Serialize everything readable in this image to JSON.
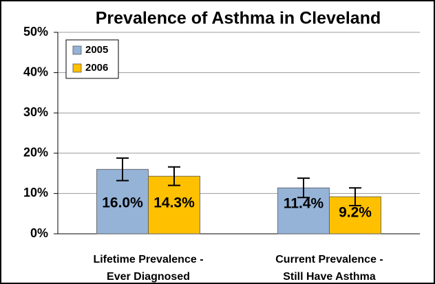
{
  "chart_data": {
    "type": "bar",
    "title": "Prevalence of Asthma in Cleveland",
    "categories": [
      [
        "Lifetime Prevalence -",
        "Ever Diagnosed"
      ],
      [
        "Current Prevalence -",
        "Still Have Asthma"
      ]
    ],
    "series": [
      {
        "name": "2005",
        "color": "#95b3d7",
        "values": [
          16.0,
          11.4
        ],
        "value_labels": [
          "16.0%",
          "11.4%"
        ],
        "errors": [
          2.8,
          2.4
        ]
      },
      {
        "name": "2006",
        "color": "#ffc000",
        "values": [
          14.3,
          9.2
        ],
        "value_labels": [
          "14.3%",
          "9.2%"
        ],
        "errors": [
          2.3,
          2.2
        ]
      }
    ],
    "ylim": [
      0,
      50
    ],
    "yticks": [
      {
        "value": 0,
        "label": "0%"
      },
      {
        "value": 10,
        "label": "10%"
      },
      {
        "value": 20,
        "label": "20%"
      },
      {
        "value": 30,
        "label": "30%"
      },
      {
        "value": 40,
        "label": "40%"
      },
      {
        "value": 50,
        "label": "50%"
      }
    ],
    "grid": true,
    "legend": "upper left"
  }
}
